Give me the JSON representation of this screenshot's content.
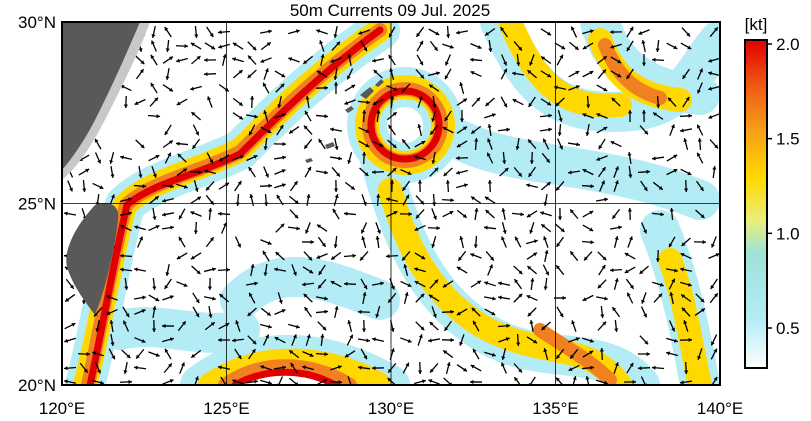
{
  "map": {
    "title": "50m Currents  09 Jul. 2025",
    "lat_labels": [
      {
        "value": 30,
        "label": "30°N"
      },
      {
        "value": 25,
        "label": "25°N"
      },
      {
        "value": 20,
        "label": "20°N"
      }
    ],
    "lon_labels": [
      {
        "value": 120,
        "label": "120°E"
      },
      {
        "value": 125,
        "label": "125°E"
      },
      {
        "value": 130,
        "label": "130°E"
      },
      {
        "value": 135,
        "label": "135°E"
      },
      {
        "value": 140,
        "label": "140°E"
      }
    ],
    "colorbar": {
      "unit": "[kt]",
      "ticks": [
        {
          "value": 2,
          "label": "2.0"
        },
        {
          "value": 1.5,
          "label": "1.5"
        },
        {
          "value": 1,
          "label": "1.0"
        },
        {
          "value": 0.5,
          "label": "0.5"
        }
      ]
    }
  }
}
